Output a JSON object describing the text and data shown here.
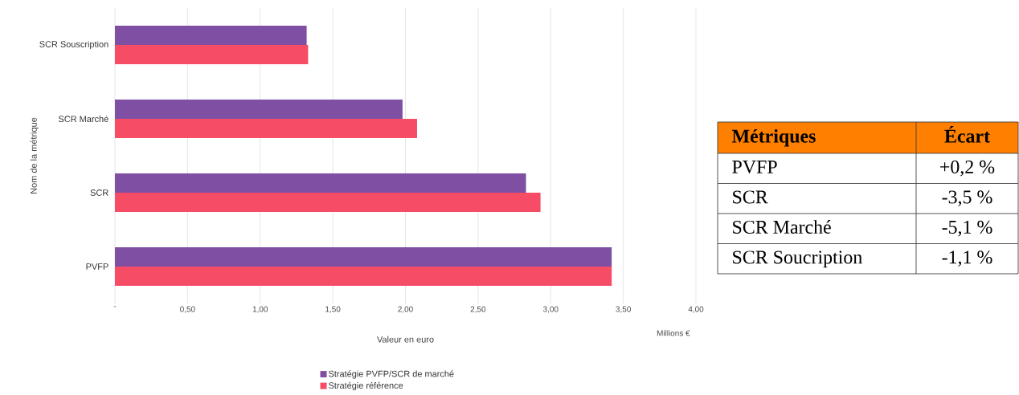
{
  "chart_data": [
    {
      "type": "bar",
      "orientation": "horizontal",
      "xlabel": "Valeur en euro",
      "ylabel": "Nom de la métrique",
      "categories": [
        "SCR Souscription",
        "SCR Marché",
        "SCR",
        "PVFP"
      ],
      "series": [
        {
          "name": "Stratégie PVFP/SCR de marché",
          "color": "#7f4fa3",
          "values": [
            1.32,
            1.98,
            2.83,
            3.42
          ]
        },
        {
          "name": "Stratégie référence",
          "color": "#f74c66",
          "values": [
            1.33,
            2.08,
            2.93,
            3.42
          ]
        }
      ],
      "xlim": [
        0,
        4
      ],
      "xticks": [
        {
          "value": 0,
          "label": "-"
        },
        {
          "value": 0.5,
          "label": "0,50"
        },
        {
          "value": 1,
          "label": "1,00"
        },
        {
          "value": 1.5,
          "label": "1,50"
        },
        {
          "value": 2,
          "label": "2,00"
        },
        {
          "value": 2.5,
          "label": "2,50"
        },
        {
          "value": 3,
          "label": "3,00"
        },
        {
          "value": 3.5,
          "label": "3,50"
        },
        {
          "value": 4,
          "label": "4,00"
        }
      ],
      "grid": "x",
      "legend": "bottom",
      "annotations": [
        "Millions €"
      ]
    },
    {
      "type": "other",
      "color": "#ff8000",
      "annotations": [
        "**Métriques**",
        "**Écart**"
      ],
      "categories": [
        "PVFP",
        "SCR",
        "SCR Marché",
        "SCR Soucription"
      ],
      "value_labels": [
        "+0,2 %",
        "-3,5 %",
        "-5,1 %",
        "-1,1 %"
      ]
    }
  ]
}
